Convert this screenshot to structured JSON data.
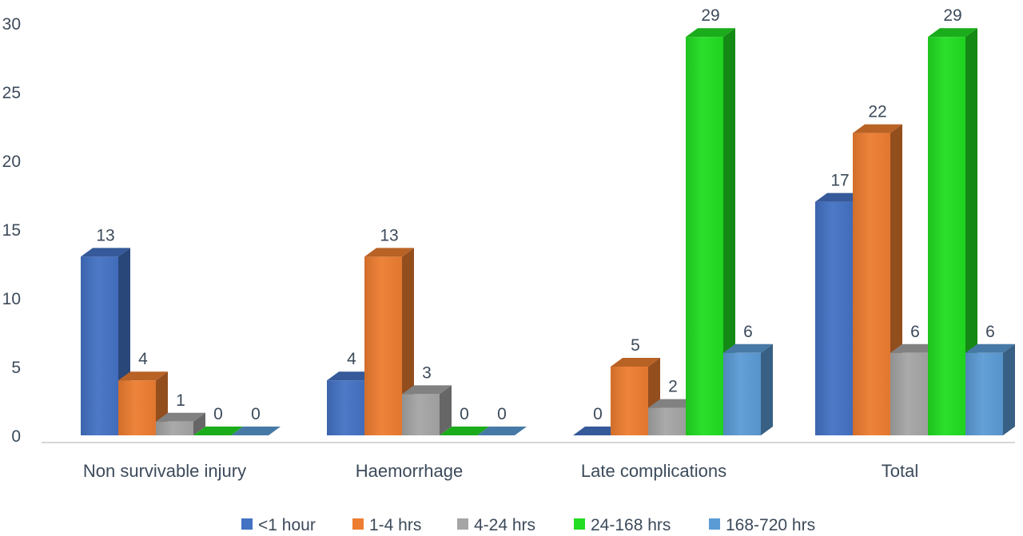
{
  "chart_data": {
    "type": "bar",
    "style": "3d-clustered-column",
    "title": "",
    "xlabel": "",
    "ylabel": "",
    "categories": [
      "Non survivable injury",
      "Haemorrhage",
      "Late complications",
      "Total"
    ],
    "series": [
      {
        "name": "<1 hour",
        "color": "#4472C4",
        "values": [
          13,
          4,
          0,
          17
        ]
      },
      {
        "name": "1-4 hrs",
        "color": "#ED7D31",
        "values": [
          4,
          13,
          5,
          22
        ]
      },
      {
        "name": "4-24 hrs",
        "color": "#A5A5A5",
        "values": [
          1,
          3,
          2,
          6
        ]
      },
      {
        "name": "24-168 hrs",
        "color": "#22DD22",
        "values": [
          0,
          0,
          29,
          29
        ]
      },
      {
        "name": "168-720 hrs",
        "color": "#5B9BD5",
        "values": [
          0,
          0,
          6,
          6
        ]
      }
    ],
    "ylim": [
      0,
      30
    ],
    "yticks": [
      0,
      5,
      10,
      15,
      20,
      25,
      30
    ],
    "grid": false,
    "data_labels": true,
    "legend_position": "bottom"
  }
}
